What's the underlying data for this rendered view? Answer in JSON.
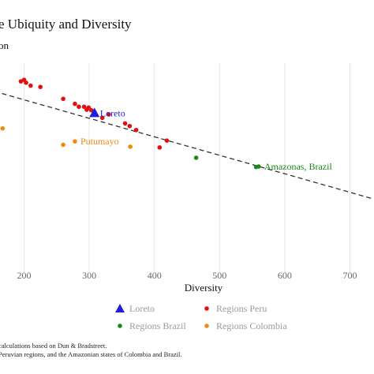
{
  "chart_data": {
    "type": "scatter",
    "title": "e Ubiquity and Diversity",
    "subtitle": "on",
    "xlabel": "Diversity",
    "ylabel": "",
    "xlim": [
      163,
      737
    ],
    "ylim": [
      0,
      1
    ],
    "x_ticks": [
      200,
      300,
      400,
      500,
      600,
      700
    ],
    "grid": "vertical",
    "colors": {
      "Loreto": "#1f1fd6",
      "Regions Peru": "#e01010",
      "Regions Brazil": "#1a8a1a",
      "Regions Colombia": "#f08a10",
      "trend": "#333333",
      "grid": "#e6e6e6"
    },
    "series": [
      {
        "name": "Regions Peru",
        "marker": "circle",
        "color": "#e01010",
        "points": [
          {
            "x": 195,
            "y": 0.722
          },
          {
            "x": 200,
            "y": 0.728
          },
          {
            "x": 203,
            "y": 0.717
          },
          {
            "x": 210,
            "y": 0.706
          },
          {
            "x": 225,
            "y": 0.701
          },
          {
            "x": 260,
            "y": 0.656
          },
          {
            "x": 278,
            "y": 0.637
          },
          {
            "x": 284,
            "y": 0.626
          },
          {
            "x": 292,
            "y": 0.626
          },
          {
            "x": 296,
            "y": 0.615
          },
          {
            "x": 299,
            "y": 0.623
          },
          {
            "x": 303,
            "y": 0.613
          },
          {
            "x": 320,
            "y": 0.584
          },
          {
            "x": 330,
            "y": 0.597
          },
          {
            "x": 355,
            "y": 0.563
          },
          {
            "x": 362,
            "y": 0.553
          },
          {
            "x": 372,
            "y": 0.538
          },
          {
            "x": 419,
            "y": 0.498
          },
          {
            "x": 408,
            "y": 0.472
          }
        ]
      },
      {
        "name": "Loreto",
        "marker": "triangle",
        "color": "#1f1fd6",
        "points": [
          {
            "x": 308,
            "y": 0.602,
            "label": "Loreto"
          }
        ]
      },
      {
        "name": "Regions Brazil",
        "marker": "circle",
        "color": "#1a8a1a",
        "points": [
          {
            "x": 464,
            "y": 0.433
          },
          {
            "x": 556,
            "y": 0.398
          },
          {
            "x": 560,
            "y": 0.4,
            "label": "Amazonas, Brazil"
          }
        ]
      },
      {
        "name": "Regions Colombia",
        "marker": "circle",
        "color": "#f08a10",
        "points": [
          {
            "x": 167,
            "y": 0.544
          },
          {
            "x": 260,
            "y": 0.482
          },
          {
            "x": 278,
            "y": 0.495,
            "label": "Putumayo"
          },
          {
            "x": 363,
            "y": 0.475
          }
        ]
      }
    ],
    "trend_line": {
      "style": "dashed",
      "color": "#333333",
      "points": [
        {
          "x": 166,
          "y": 0.676
        },
        {
          "x": 735,
          "y": 0.278
        }
      ]
    },
    "legend": {
      "placement": "bottom",
      "entries": [
        {
          "label": "Loreto",
          "marker": "triangle",
          "color": "#1f1fd6"
        },
        {
          "label": "Regions Peru",
          "marker": "circle",
          "color": "#e01010"
        },
        {
          "label": "Regions Brazil",
          "marker": "circle",
          "color": "#1a8a1a"
        },
        {
          "label": "Regions Colombia",
          "marker": "circle",
          "color": "#f08a10"
        }
      ]
    },
    "notes": [
      "calculations based on Dun & Bradstreet.",
      "Peruvian regions, and the Amazonian states of Colombia and Brazil."
    ]
  }
}
